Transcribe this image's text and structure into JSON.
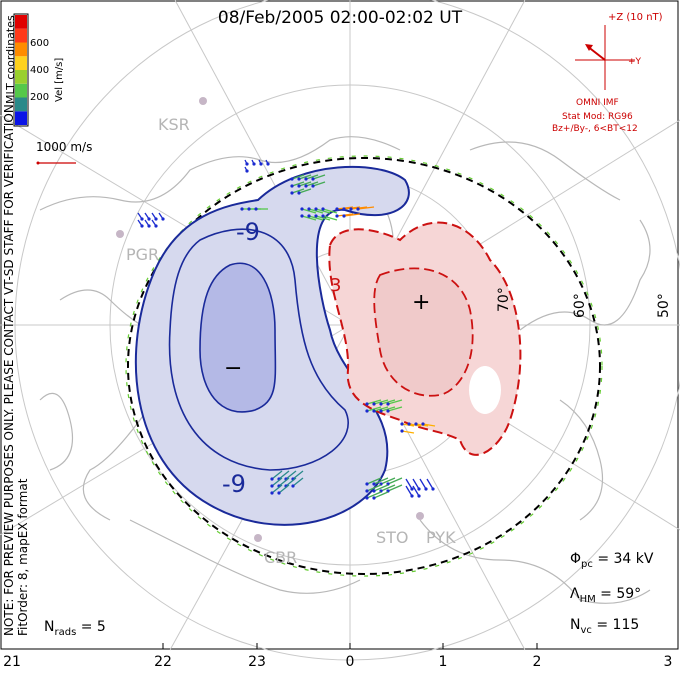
{
  "title": "08/Feb/2005 02:00-02:02 UT",
  "coordinate_label": "MLT coordinates",
  "disclaimer": "NOTE: FOR PREVIEW PURPOSES ONLY. PLEASE CONTACT VT-SD STAFF FOR VERIFICATION.",
  "fit_info": "FitOrder: 8, mapEX format",
  "colorbar": {
    "label": "Vel [m/s]",
    "ticks": [
      "200",
      "400",
      "600"
    ],
    "colors": [
      "#0a14e6",
      "#2a8a8a",
      "#55c84a",
      "#9ad02e",
      "#ffd21e",
      "#ff8c00",
      "#ff3a1a",
      "#e00000"
    ]
  },
  "reference_vector": "1000 m/s",
  "imf": {
    "bz_label": "+Z (10 nT)",
    "by_label": "+Y",
    "source": "OMNI IMF",
    "model": "Stat Mod: RG96",
    "condition": "Bz+/By-, 6<BT<12"
  },
  "sites": [
    "KSR",
    "PGR",
    "CBR",
    "STO",
    "PYK"
  ],
  "latitude_labels": [
    "70°",
    "60°",
    "50°"
  ],
  "contour_labels": {
    "neg": "-9",
    "neg2": "-9",
    "pos": "3",
    "neg_center": "−",
    "pos_center": "+"
  },
  "stats": {
    "phi_sym": "Φ",
    "phi_sub": "pc",
    "phi_val": " = 34 kV",
    "lam_sym": "Λ",
    "lam_sub": "HM",
    "lam_val": " = 59°",
    "nvc_sym": "N",
    "nvc_sub": "vc",
    "nvc_val": " = 115",
    "nrads_sym": "N",
    "nrads_sub": "rads",
    "nrads_val": " = 5"
  },
  "mlt_ticks": [
    "21",
    "22",
    "23",
    "0",
    "1",
    "2",
    "3"
  ]
}
